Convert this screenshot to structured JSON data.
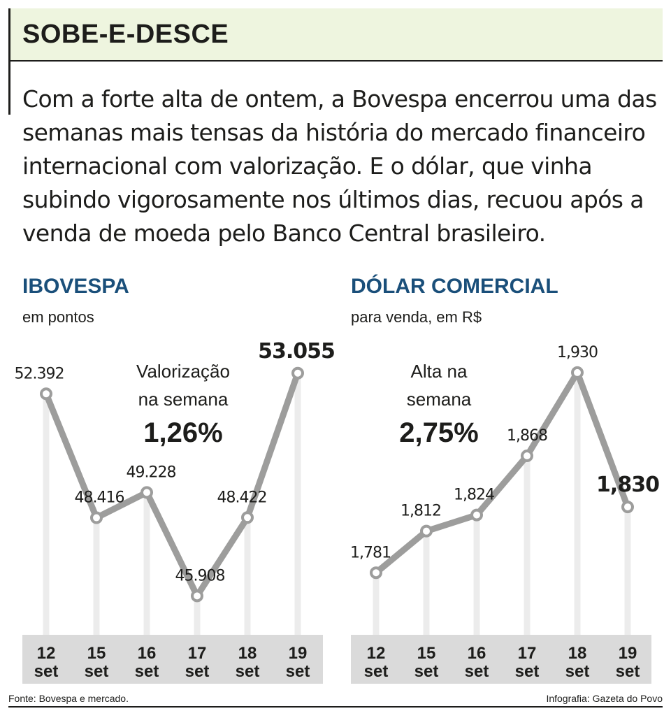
{
  "header": {
    "title": "SOBE-E-DESCE",
    "intro": "Com a forte alta de ontem, a Bovespa encerrou uma das semanas mais tensas da história do mercado financeiro internacional com valorização. E o dólar, que vinha subindo vigorosamente nos últimos dias, recuou após a venda de moeda pelo Banco Central brasileiro."
  },
  "panels": {
    "ibovespa": {
      "title": "IBOVESPA",
      "subtitle": "em pontos",
      "callout": [
        "Valorização",
        "na semana",
        "1,26%"
      ]
    },
    "dolar": {
      "title": "DÓLAR COMERCIAL",
      "subtitle": "para venda, em R$",
      "callout": [
        "Alta na",
        "semana",
        "2,75%"
      ]
    }
  },
  "footer": {
    "source": "Fonte: Bovespa e mercado.",
    "credit": "Infografia: Gazeta do Povo"
  },
  "colors": {
    "line": "#9d9d9c",
    "marker_fill": "#ffffff",
    "gridline": "#ececec",
    "axis_band": "#dadada",
    "title_blue": "#1a4f7a",
    "header_band": "#eef5df",
    "text": "#1d1d1b"
  },
  "chart_data": [
    {
      "type": "line",
      "title": "IBOVESPA",
      "ylabel": "em pontos",
      "categories": [
        [
          "12",
          "set"
        ],
        [
          "15",
          "set"
        ],
        [
          "16",
          "set"
        ],
        [
          "17",
          "set"
        ],
        [
          "18",
          "set"
        ],
        [
          "19",
          "set"
        ]
      ],
      "values": [
        52392,
        48416,
        49228,
        45908,
        48422,
        53055
      ],
      "value_labels": [
        "52.392",
        "48.416",
        "49.228",
        "45.908",
        "48.422",
        "53.055"
      ],
      "ylim": [
        45400,
        53700
      ],
      "grid": true
    },
    {
      "type": "line",
      "title": "DÓLAR COMERCIAL",
      "ylabel": "para venda, em R$",
      "categories": [
        [
          "12",
          "set"
        ],
        [
          "15",
          "set"
        ],
        [
          "16",
          "set"
        ],
        [
          "17",
          "set"
        ],
        [
          "18",
          "set"
        ],
        [
          "19",
          "set"
        ]
      ],
      "values": [
        1.781,
        1.812,
        1.824,
        1.868,
        1.93,
        1.83
      ],
      "value_labels": [
        "1,781",
        "1,812",
        "1,824",
        "1,868",
        "1,930",
        "1,830"
      ],
      "ylim": [
        1.765,
        1.944
      ],
      "grid": true
    }
  ]
}
